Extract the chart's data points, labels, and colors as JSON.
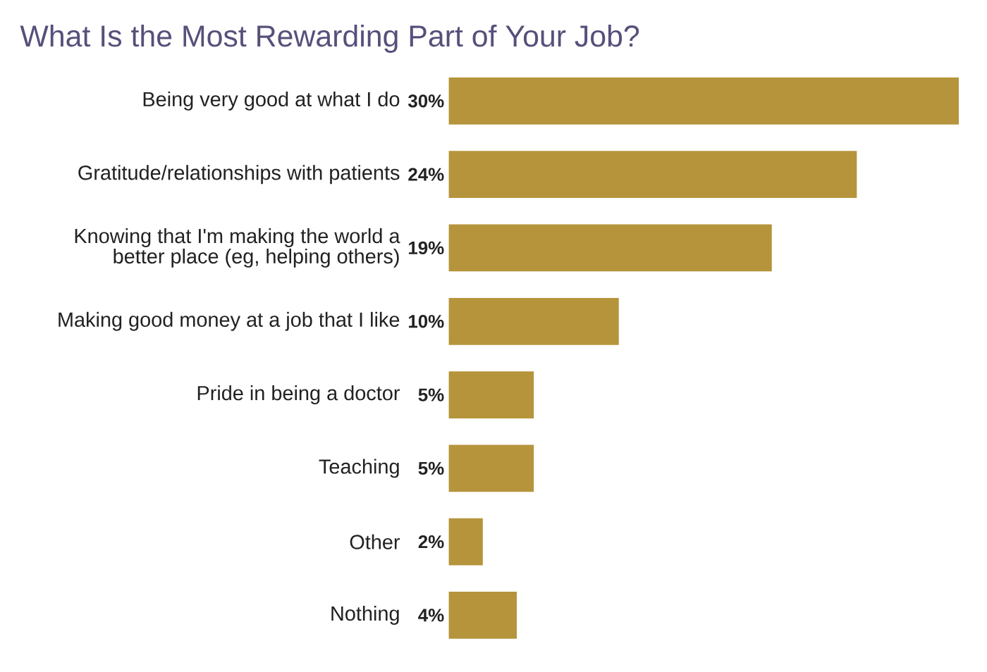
{
  "chart_data": {
    "type": "bar",
    "orientation": "horizontal",
    "title": "What Is the Most Rewarding Part of Your Job?",
    "categories": [
      "Being very good at what I do",
      "Gratitude/relationships with patients",
      "Knowing that I'm making the world a better place (eg, helping others)",
      "Making good money at a job that I like",
      "Pride in being a doctor",
      "Teaching",
      "Other",
      "Nothing"
    ],
    "values": [
      30,
      24,
      19,
      10,
      5,
      5,
      2,
      4
    ],
    "value_labels": [
      "30%",
      "24%",
      "19%",
      "10%",
      "5%",
      "5%",
      "2%",
      "4%"
    ],
    "color": "#b5943b",
    "xlim": [
      0,
      30
    ],
    "tick_labels": "y"
  }
}
